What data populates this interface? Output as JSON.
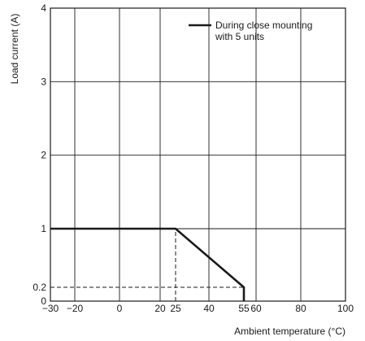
{
  "chart_data": {
    "type": "line",
    "xlabel": "Ambient temperature (°C)",
    "ylabel": "Load current (A)",
    "xlim": [
      -30,
      100
    ],
    "ylim": [
      0,
      4
    ],
    "x_ticks": [
      -30,
      -20,
      0,
      20,
      25,
      40,
      55,
      60,
      80,
      100
    ],
    "x_tick_labels": [
      "−30",
      "−20",
      "0",
      "20",
      "25",
      "40",
      "55",
      "60",
      "80",
      "100"
    ],
    "y_ticks": [
      0,
      0.2,
      1,
      2,
      3,
      4
    ],
    "y_tick_labels": [
      "0",
      "0.2",
      "1",
      "2",
      "3",
      "4"
    ],
    "grid_x": [
      -30,
      -20,
      0,
      20,
      40,
      60,
      80,
      100
    ],
    "grid_y": [
      0,
      1,
      2,
      3,
      4
    ],
    "grid": true,
    "legend_position": "top-right",
    "series": [
      {
        "name_lines": [
          "During close mounting",
          "with 5 units"
        ],
        "x": [
          -30,
          25,
          55,
          55
        ],
        "y": [
          1,
          1,
          0.2,
          0
        ],
        "color": "#1a1a1a"
      }
    ],
    "reference_lines": [
      {
        "x": [
          25,
          25
        ],
        "y": [
          0,
          1
        ]
      },
      {
        "x": [
          -30,
          55
        ],
        "y": [
          0.2,
          0.2
        ]
      }
    ]
  }
}
